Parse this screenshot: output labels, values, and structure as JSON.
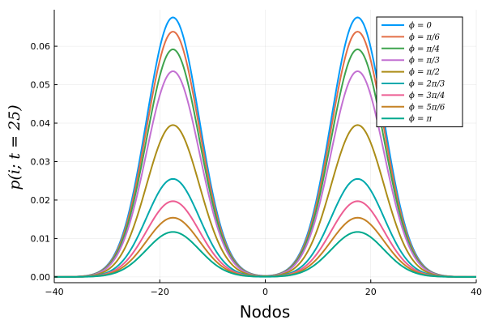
{
  "chart_data": {
    "type": "line",
    "title": "",
    "xlabel": "Nodos",
    "ylabel": "p(i; t = 25)",
    "xlim": [
      -40,
      40
    ],
    "ylim": [
      -0.0015,
      0.0695
    ],
    "xticks": [
      -40,
      -20,
      0,
      20,
      40
    ],
    "xtick_labels": [
      "−40",
      "−20",
      "0",
      "20",
      "40"
    ],
    "yticks": [
      0.0,
      0.01,
      0.02,
      0.03,
      0.04,
      0.05,
      0.06
    ],
    "ytick_labels": [
      "0.00",
      "0.01",
      "0.02",
      "0.03",
      "0.04",
      "0.05",
      "0.06"
    ],
    "grid": true,
    "legend_position": "top-right",
    "x": [
      -40,
      -38,
      -36,
      -34,
      -32,
      -30,
      -28,
      -26,
      -24,
      -22,
      -20,
      -18,
      -16,
      -14,
      -12,
      -10,
      -8,
      -6,
      -4,
      -2,
      0,
      2,
      4,
      6,
      8,
      10,
      12,
      14,
      16,
      18,
      20,
      22,
      24,
      26,
      28,
      30,
      32,
      34,
      36,
      38,
      40
    ],
    "peak_position": 17.5,
    "peak_width": 5,
    "series": [
      {
        "name": "ϕ = 0",
        "color": "#009AFA",
        "peak": 0.0675,
        "values": [
          0,
          0,
          0,
          0,
          0.0001,
          0.0006,
          0.0024,
          0.0072,
          0.0167,
          0.0302,
          0.0486,
          0.0662,
          0.0647,
          0.0531,
          0.0362,
          0.0204,
          0.0095,
          0.0037,
          0.0011,
          0.0003,
          0.0001,
          0.0003,
          0.0011,
          0.0037,
          0.0095,
          0.0204,
          0.0362,
          0.0531,
          0.0647,
          0.0662,
          0.0486,
          0.0302,
          0.0167,
          0.0072,
          0.0024,
          0.0006,
          0.0001,
          0,
          0,
          0,
          0
        ]
      },
      {
        "name": "ϕ = π/6",
        "color": "#E36F47",
        "peak": 0.0638,
        "values": [
          0,
          0,
          0,
          0,
          0.0001,
          0.0006,
          0.0023,
          0.0068,
          0.0158,
          0.0285,
          0.0459,
          0.0626,
          0.0611,
          0.0502,
          0.0342,
          0.0193,
          0.009,
          0.0035,
          0.001,
          0.0003,
          0.0001,
          0.0003,
          0.001,
          0.0035,
          0.009,
          0.0193,
          0.0342,
          0.0502,
          0.0611,
          0.0626,
          0.0459,
          0.0285,
          0.0158,
          0.0068,
          0.0023,
          0.0006,
          0.0001,
          0,
          0,
          0,
          0
        ]
      },
      {
        "name": "ϕ = π/4",
        "color": "#3EA44E",
        "peak": 0.0592,
        "values": [
          0,
          0,
          0,
          0,
          0.0001,
          0.0005,
          0.0021,
          0.0063,
          0.0147,
          0.0265,
          0.0426,
          0.0581,
          0.0567,
          0.0466,
          0.0317,
          0.0179,
          0.0083,
          0.0032,
          0.001,
          0.0003,
          0.0001,
          0.0003,
          0.001,
          0.0032,
          0.0083,
          0.0179,
          0.0317,
          0.0466,
          0.0567,
          0.0581,
          0.0426,
          0.0265,
          0.0147,
          0.0063,
          0.0021,
          0.0005,
          0.0001,
          0,
          0,
          0,
          0
        ]
      },
      {
        "name": "ϕ = π/3",
        "color": "#C371D2",
        "peak": 0.0535,
        "values": [
          0,
          0,
          0,
          0,
          0.0001,
          0.0005,
          0.0019,
          0.0057,
          0.0132,
          0.0239,
          0.0385,
          0.0525,
          0.0513,
          0.0421,
          0.0287,
          0.0162,
          0.0075,
          0.0029,
          0.0009,
          0.0002,
          0.0001,
          0.0002,
          0.0009,
          0.0029,
          0.0075,
          0.0162,
          0.0287,
          0.0421,
          0.0513,
          0.0525,
          0.0385,
          0.0239,
          0.0132,
          0.0057,
          0.0019,
          0.0005,
          0.0001,
          0,
          0,
          0,
          0
        ]
      },
      {
        "name": "ϕ = π/2",
        "color": "#AC8D18",
        "peak": 0.0395,
        "values": [
          0,
          0,
          0,
          0,
          0.0001,
          0.0004,
          0.0014,
          0.0042,
          0.0098,
          0.0177,
          0.0284,
          0.0388,
          0.0379,
          0.0311,
          0.0212,
          0.012,
          0.0056,
          0.0021,
          0.0007,
          0.0002,
          0.0001,
          0.0002,
          0.0007,
          0.0021,
          0.0056,
          0.012,
          0.0212,
          0.0311,
          0.0379,
          0.0388,
          0.0284,
          0.0177,
          0.0098,
          0.0042,
          0.0014,
          0.0004,
          0.0001,
          0,
          0,
          0,
          0
        ]
      },
      {
        "name": "ϕ = 2π/3",
        "color": "#00A9AD",
        "peak": 0.0255,
        "values": [
          0,
          0,
          0,
          0,
          0,
          0.0002,
          0.0009,
          0.0027,
          0.0063,
          0.0114,
          0.0184,
          0.025,
          0.0245,
          0.0201,
          0.0137,
          0.0077,
          0.0036,
          0.0014,
          0.0004,
          0.0001,
          0,
          0.0001,
          0.0004,
          0.0014,
          0.0036,
          0.0077,
          0.0137,
          0.0201,
          0.0245,
          0.025,
          0.0184,
          0.0114,
          0.0063,
          0.0027,
          0.0009,
          0.0002,
          0,
          0,
          0,
          0,
          0
        ]
      },
      {
        "name": "ϕ = 3π/4",
        "color": "#ED5E93",
        "peak": 0.0197,
        "values": [
          0,
          0,
          0,
          0,
          0,
          0.0002,
          0.0007,
          0.0021,
          0.0049,
          0.0088,
          0.0142,
          0.0193,
          0.0189,
          0.0155,
          0.0106,
          0.006,
          0.0028,
          0.0011,
          0.0003,
          0.0001,
          0,
          0.0001,
          0.0003,
          0.0011,
          0.0028,
          0.006,
          0.0106,
          0.0155,
          0.0189,
          0.0193,
          0.0142,
          0.0088,
          0.0049,
          0.0021,
          0.0007,
          0.0002,
          0,
          0,
          0,
          0,
          0
        ]
      },
      {
        "name": "ϕ = 5π/6",
        "color": "#C68225",
        "peak": 0.0154,
        "values": [
          0,
          0,
          0,
          0,
          0,
          0.0001,
          0.0005,
          0.0016,
          0.0038,
          0.0069,
          0.0111,
          0.0151,
          0.0148,
          0.0121,
          0.0083,
          0.0047,
          0.0022,
          0.0008,
          0.0003,
          0.0001,
          0,
          0.0001,
          0.0003,
          0.0008,
          0.0022,
          0.0047,
          0.0083,
          0.0121,
          0.0148,
          0.0151,
          0.0111,
          0.0069,
          0.0038,
          0.0016,
          0.0005,
          0.0001,
          0,
          0,
          0,
          0,
          0
        ]
      },
      {
        "name": "ϕ = π",
        "color": "#00A98D",
        "peak": 0.0117,
        "values": [
          0,
          0,
          0,
          0,
          0,
          0.0001,
          0.0004,
          0.0012,
          0.0029,
          0.0052,
          0.0084,
          0.0115,
          0.0112,
          0.0092,
          0.0063,
          0.0035,
          0.0016,
          0.0006,
          0.0002,
          0.0001,
          0,
          0.0001,
          0.0002,
          0.0006,
          0.0016,
          0.0035,
          0.0063,
          0.0092,
          0.0112,
          0.0115,
          0.0084,
          0.0052,
          0.0029,
          0.0012,
          0.0004,
          0.0001,
          0,
          0,
          0,
          0,
          0
        ]
      }
    ]
  }
}
